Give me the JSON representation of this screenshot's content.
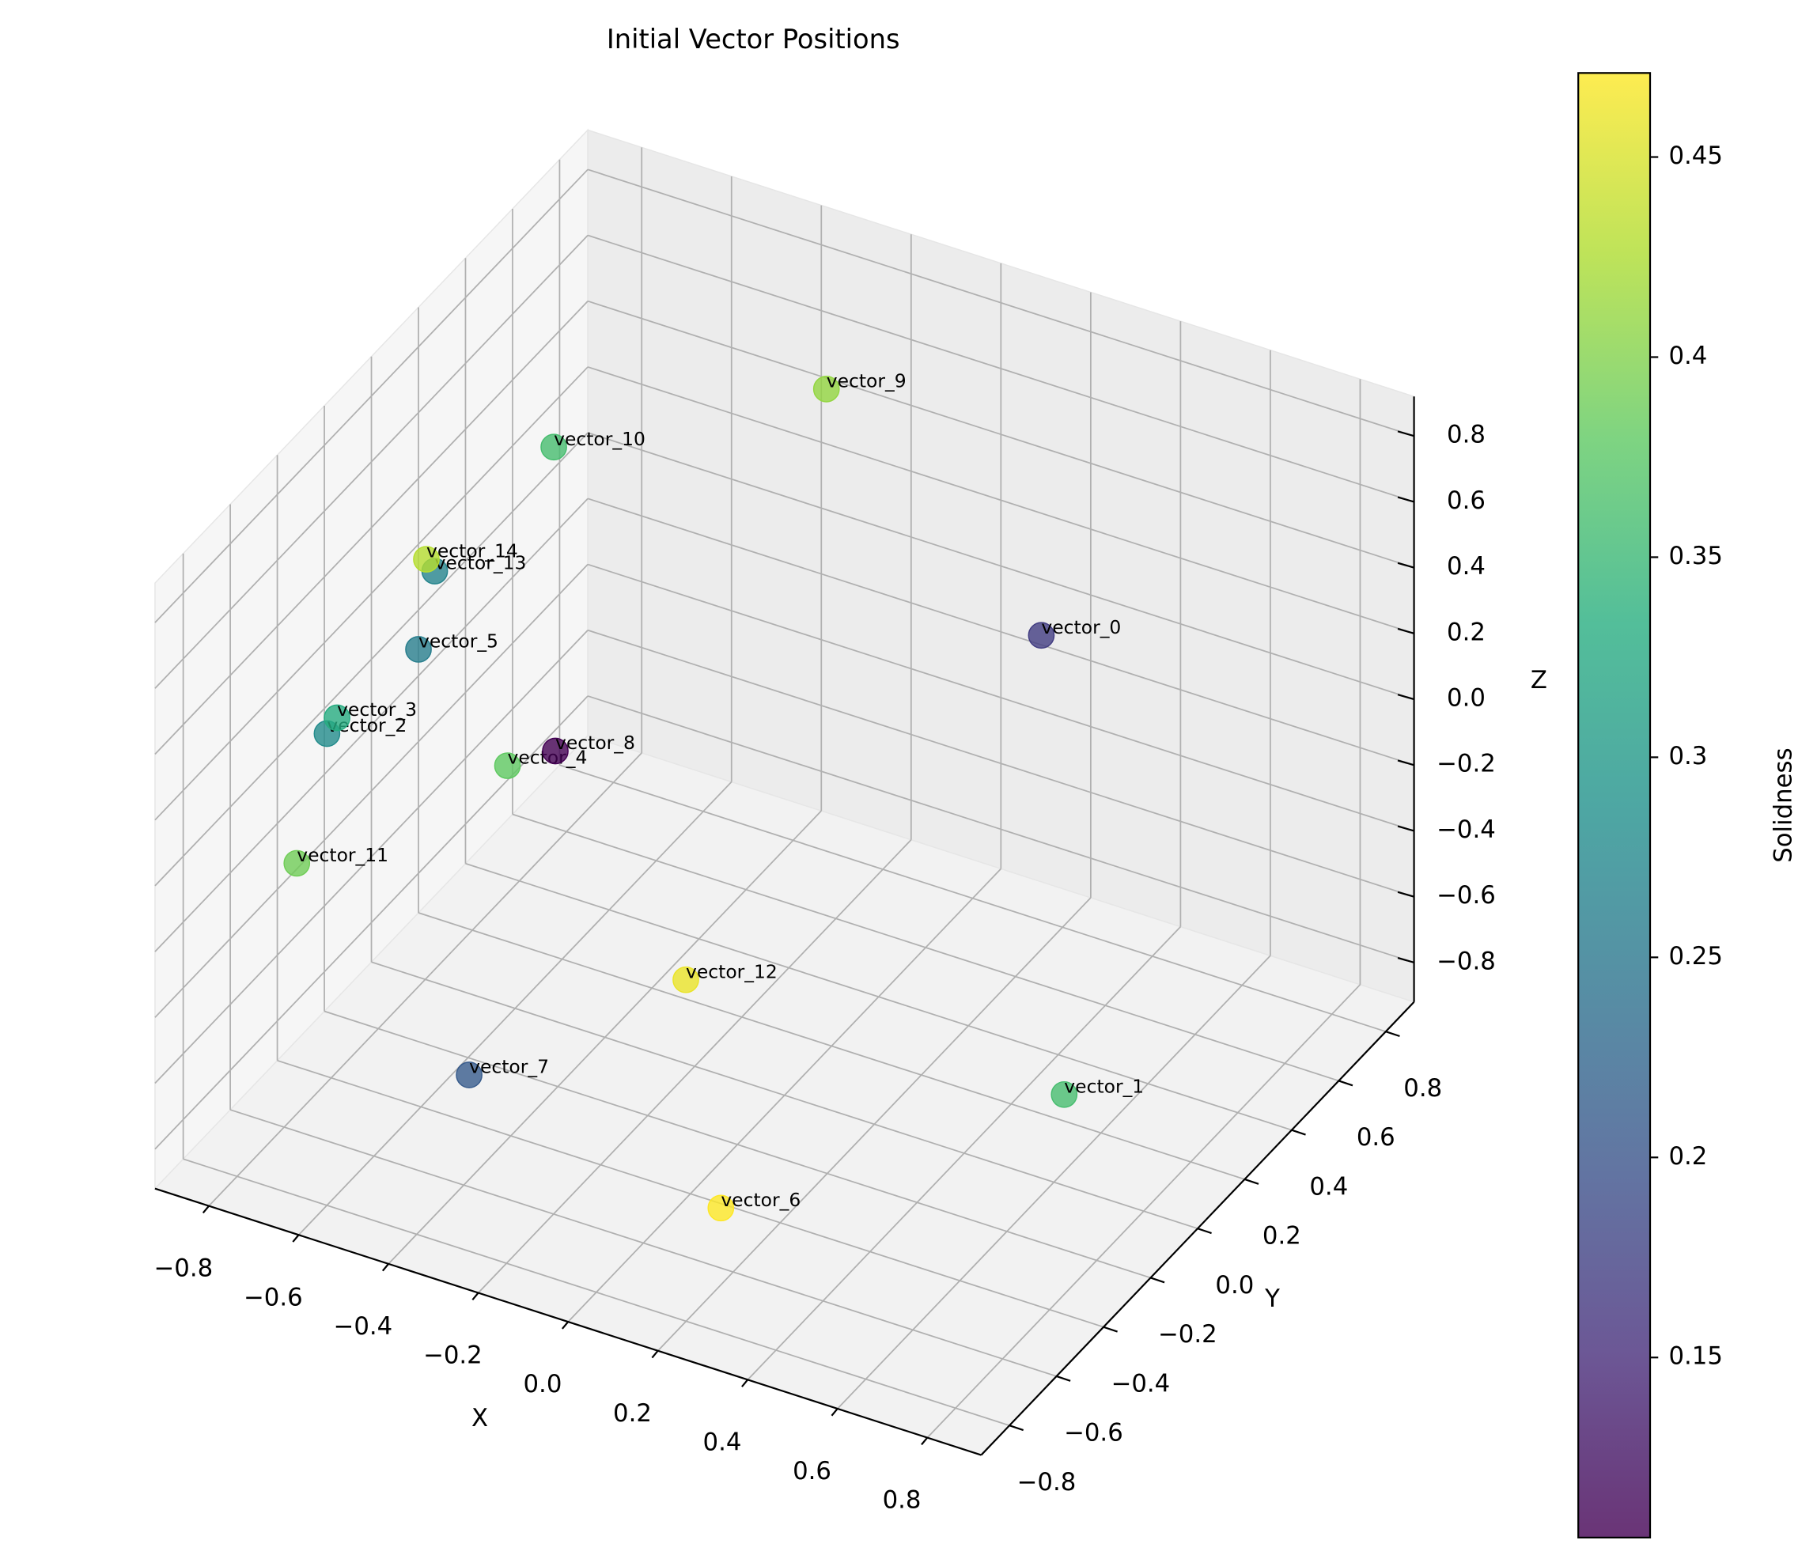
{
  "chart_data": {
    "type": "scatter3d",
    "title": "Initial Vector Positions",
    "xlabel": "X",
    "ylabel": "Y",
    "zlabel": "Z",
    "point_labels": [
      "vector_0",
      "vector_1",
      "vector_2",
      "vector_3",
      "vector_4",
      "vector_5",
      "vector_6",
      "vector_7",
      "vector_8",
      "vector_9",
      "vector_10",
      "vector_11",
      "vector_12",
      "vector_13",
      "vector_14"
    ],
    "x": [
      0.31,
      0.78,
      -0.757,
      -0.787,
      -0.617,
      -0.658,
      0.225,
      -0.388,
      -0.72,
      -0.221,
      -0.671,
      -0.667,
      -0.115,
      -0.779,
      -0.85
    ],
    "y": [
      0.5,
      -0.3,
      -0.5,
      -0.4,
      0,
      -0.3,
      -0.7,
      -0.6,
      0.4,
      0.6,
      0.3,
      -0.8,
      -0.2,
      0,
      0.1
    ],
    "z": [
      0.24,
      -0.35,
      0.22,
      0.18,
      -0.19,
      0.37,
      -0.64,
      -0.58,
      -0.49,
      0.68,
      0.53,
      0.09,
      -0.47,
      0.33,
      0.26
    ],
    "values": [
      0.17,
      0.36,
      0.28,
      0.33,
      0.38,
      0.26,
      0.471,
      0.21,
      0.105,
      0.41,
      0.36,
      0.39,
      0.46,
      0.27,
      0.43
    ],
    "colormap": "viridis",
    "colorbar_label": "Solidness",
    "clim": [
      0.105,
      0.471
    ],
    "cticks": [
      0.15,
      0.2,
      0.25,
      0.3,
      0.35,
      0.4,
      0.45
    ],
    "xlim": [
      -0.92,
      0.92
    ],
    "ylim": [
      -0.92,
      0.92
    ],
    "zlim": [
      -0.92,
      0.92
    ],
    "xticks": [
      {
        "value": -0.8,
        "label": "−0.8"
      },
      {
        "value": -0.6,
        "label": "−0.6"
      },
      {
        "value": -0.4,
        "label": "−0.4"
      },
      {
        "value": -0.2,
        "label": "−0.2"
      },
      {
        "value": 0,
        "label": "0.0"
      },
      0.2,
      0.4,
      0.6,
      0.8
    ],
    "yticks": [
      {
        "value": -0.8,
        "label": "−0.8"
      },
      {
        "value": -0.6,
        "label": "−0.6"
      },
      {
        "value": -0.4,
        "label": "−0.4"
      },
      {
        "value": -0.2,
        "label": "−0.2"
      },
      {
        "value": 0,
        "label": "0.0"
      },
      0.2,
      0.4,
      0.6,
      0.8
    ],
    "zticks": [
      {
        "value": -0.8,
        "label": "−0.8"
      },
      {
        "value": -0.6,
        "label": "−0.6"
      },
      {
        "value": -0.4,
        "label": "−0.4"
      },
      {
        "value": -0.2,
        "label": "−0.2"
      },
      {
        "value": 0,
        "label": "0.0"
      },
      0.2,
      0.4,
      0.6,
      0.8
    ],
    "grid": true
  }
}
